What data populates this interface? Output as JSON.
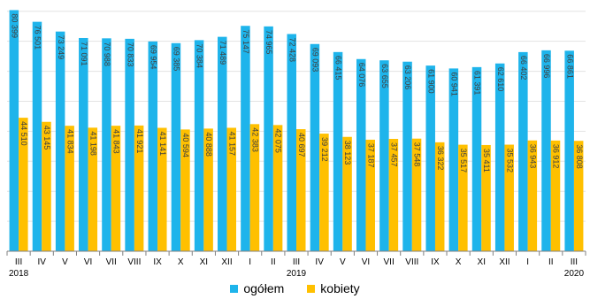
{
  "chart_data": {
    "type": "bar",
    "categories": [
      "III",
      "IV",
      "V",
      "VI",
      "VII",
      "VIII",
      "IX",
      "X",
      "XI",
      "XII",
      "I",
      "II",
      "III",
      "IV",
      "V",
      "VI",
      "VII",
      "VIII",
      "IX",
      "X",
      "XI",
      "XII",
      "I",
      "II",
      "III"
    ],
    "year_labels": [
      {
        "index": 0,
        "label": "2018"
      },
      {
        "index": 12,
        "label": "2019"
      },
      {
        "index": 24,
        "label": "2020"
      }
    ],
    "series": [
      {
        "name": "ogółem",
        "color": "#1EB4EB",
        "values": [
          80399,
          76501,
          73249,
          71091,
          70988,
          70833,
          69954,
          69385,
          70384,
          71489,
          75147,
          74965,
          72428,
          69093,
          66415,
          64076,
          63655,
          63206,
          61900,
          60941,
          61391,
          62610,
          66402,
          66996,
          66861
        ],
        "labels": [
          "80 399",
          "76 501",
          "73 249",
          "71 091",
          "70 988",
          "70 833",
          "69 954",
          "69 385",
          "70 384",
          "71 489",
          "75 147",
          "74 965",
          "72 428",
          "69 093",
          "66 415",
          "64 076",
          "63 655",
          "63 206",
          "61 900",
          "60 941",
          "61 391",
          "62 610",
          "66 402",
          "66 996",
          "66 861"
        ]
      },
      {
        "name": "kobiety",
        "color": "#FFC000",
        "values": [
          44510,
          43145,
          41834,
          41198,
          41843,
          41921,
          41141,
          40594,
          40888,
          41157,
          42383,
          42075,
          40697,
          39212,
          38123,
          37187,
          37457,
          37548,
          36322,
          35517,
          35411,
          35532,
          36943,
          36912,
          36808
        ],
        "labels": [
          "44 510",
          "43 145",
          "41 834",
          "41 198",
          "41 843",
          "41 921",
          "41 141",
          "40 594",
          "40 888",
          "41 157",
          "42 383",
          "42 075",
          "40 697",
          "39 212",
          "38 123",
          "37 187",
          "37 457",
          "37 548",
          "36 322",
          "35 517",
          "35 411",
          "35 532",
          "36 943",
          "36 912",
          "36 808"
        ]
      }
    ],
    "ylim": [
      0,
      82000
    ],
    "grid": true,
    "legend_position": "bottom",
    "axis_color": "#808080",
    "grid_color": "#E3E3E3",
    "label_color": "#404040"
  }
}
